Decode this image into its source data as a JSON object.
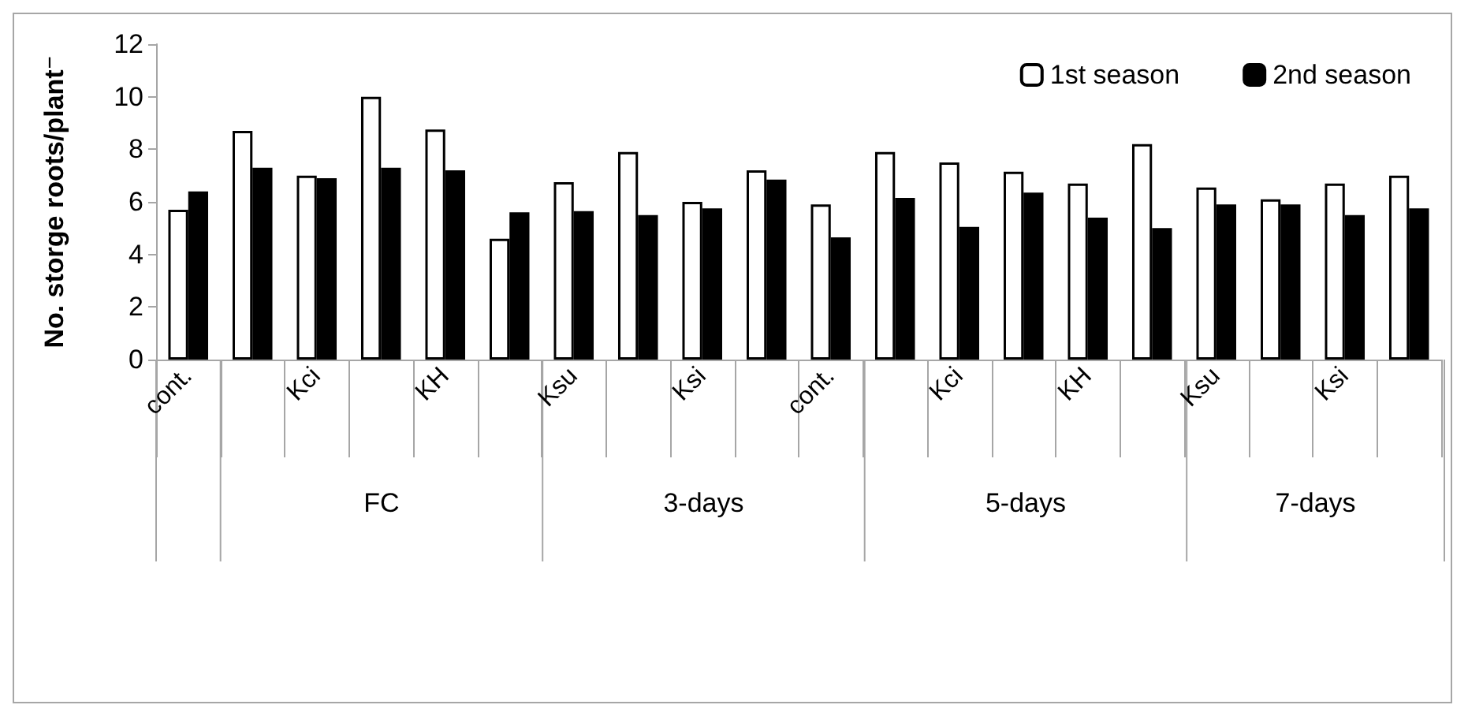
{
  "chart_data": {
    "type": "bar",
    "ylabel": "No. storge roots/plant⁻",
    "categories": [
      "cont.",
      null,
      "Kci",
      null,
      "KH",
      null,
      "Ksu",
      null,
      "Ksi",
      null,
      "cont.",
      null,
      "Kci",
      null,
      "KH",
      null,
      "Ksu",
      null,
      "Ksi",
      null
    ],
    "series": [
      {
        "name": "1st season",
        "color": "#ffffff",
        "values": [
          5.7,
          8.7,
          7.0,
          10.0,
          8.75,
          4.6,
          6.75,
          7.9,
          6.0,
          7.2,
          5.9,
          7.9,
          7.5,
          7.15,
          6.7,
          8.2,
          6.55,
          6.1,
          6.7,
          7.0
        ]
      },
      {
        "name": "2nd season",
        "color": "#000000",
        "values": [
          6.4,
          7.3,
          6.9,
          7.3,
          7.2,
          5.6,
          5.65,
          5.5,
          5.75,
          6.85,
          4.65,
          6.15,
          5.05,
          6.35,
          5.4,
          5.0,
          5.9,
          5.9,
          5.5,
          5.75
        ]
      }
    ],
    "annotations": [
      "FC",
      "3-days",
      "5-days",
      "7-days"
    ],
    "ylim": [
      0,
      12
    ],
    "yticks": [
      0,
      2,
      4,
      6,
      8,
      10,
      12
    ],
    "grid": false,
    "legend": "top right"
  }
}
